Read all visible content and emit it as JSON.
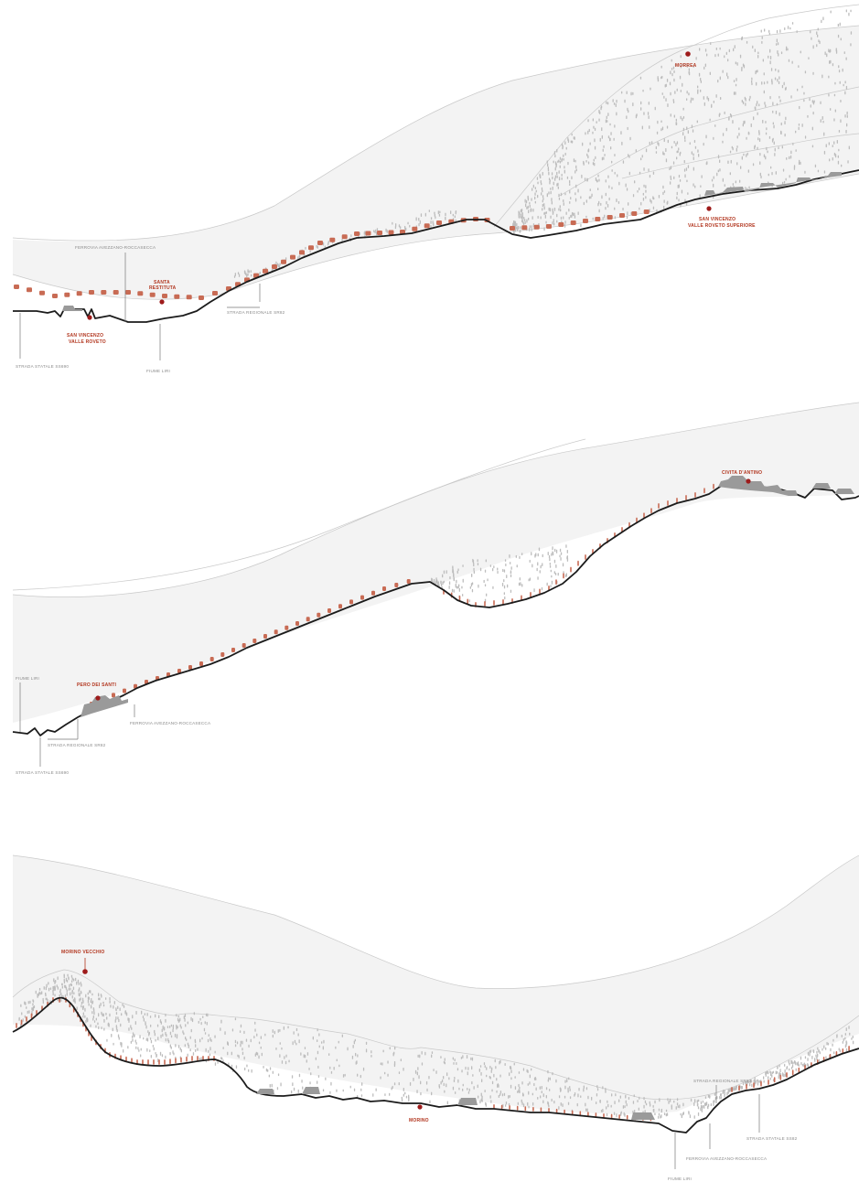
{
  "colors": {
    "accent": "#b2361f",
    "ground_line": "#1b1b1b",
    "vegetation": "#bdbdbd",
    "houses": "#c86b54",
    "background_band": "#f3f3f3"
  },
  "sections": [
    {
      "labels": {
        "ferrovia": "FERROVIA AVEZZANO-ROCCASECCA",
        "santa_restituta": "SANTA RESTITUTA",
        "strada_regionale": "STRADA REGIONALE SR82",
        "san_vincenzo": "SAN VINCENZO VALLE ROVETO",
        "strada_statale": "STRADA STATALE SS690",
        "fiume": "FIUME LIRI",
        "morrea": "MORREA",
        "san_vincenzo_sup": "SAN VINCENZO VALLE ROVETO SUPERIORE"
      }
    },
    {
      "labels": {
        "fiume": "FIUME LIRI",
        "pero_dei_santi": "PERO DEI SANTI",
        "ferrovia": "FERROVIA AVEZZANO-ROCCASECCA",
        "strada_regionale": "STRADA REGIONALE SR82",
        "strada_statale": "STRADA STATALE SS690",
        "civita": "CIVITA D'ANTINO"
      }
    },
    {
      "labels": {
        "morino_vecchio": "MORINO VECCHIO",
        "morino": "MORINO",
        "strada_regionale": "STRADA REGIONALE SR82",
        "strada_statale": "STRADA STATALE SS82",
        "ferrovia": "FERROVIA AVEZZANO-ROCCASECCA",
        "fiume": "FIUME LIRI"
      }
    }
  ]
}
